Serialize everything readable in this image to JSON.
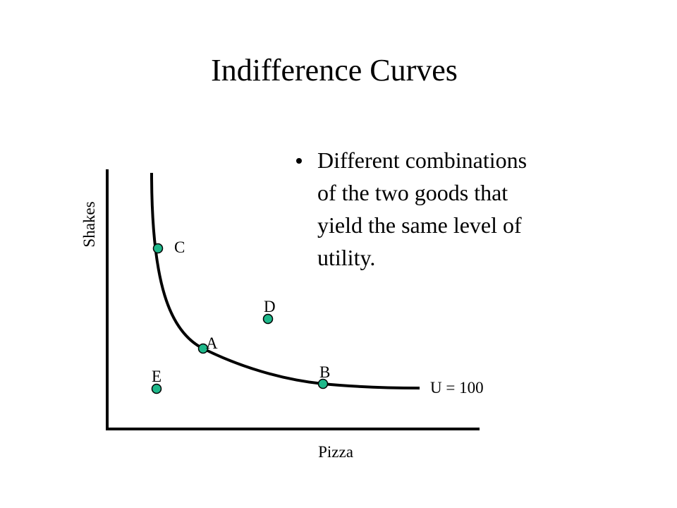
{
  "title": "Indifference Curves",
  "bullet": {
    "lines": [
      "Different combinations",
      "of the two goods that",
      "yield the same level of",
      "utility."
    ]
  },
  "diagram": {
    "y_axis_label": "Shakes",
    "x_axis_label": "Pizza",
    "curve_label": "U = 100",
    "points": [
      {
        "label": "C"
      },
      {
        "label": "A"
      },
      {
        "label": "B"
      },
      {
        "label": "D"
      },
      {
        "label": "E"
      }
    ]
  }
}
